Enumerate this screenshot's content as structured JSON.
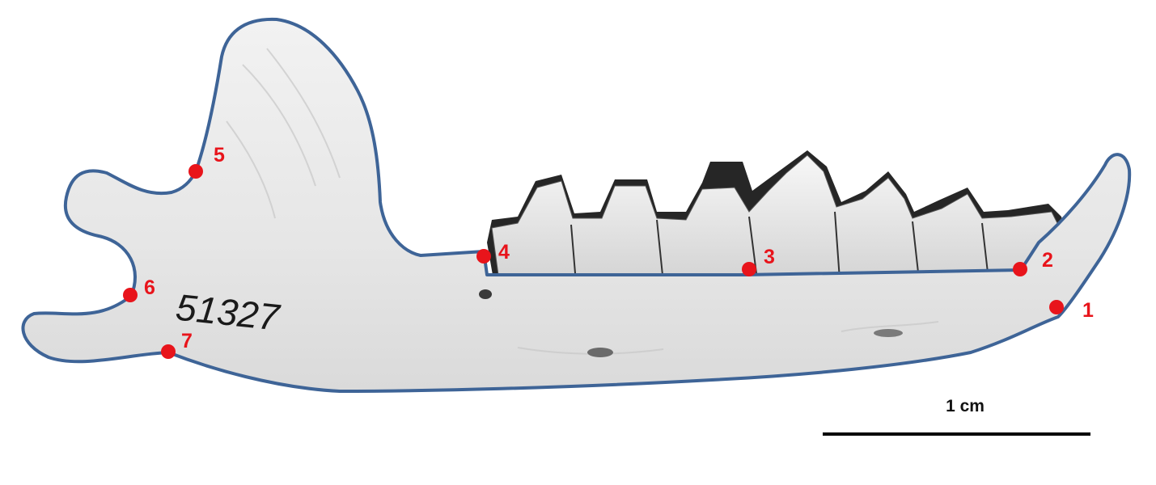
{
  "image": {
    "subject": "mandible-photo",
    "specimen_number": "51327",
    "colors": {
      "outline": "#3e6497",
      "landmark": "#e8141b",
      "bone": "#ebebeb",
      "background": "#ffffff"
    }
  },
  "landmarks": [
    {
      "id": "landmark-1",
      "label": "1"
    },
    {
      "id": "landmark-2",
      "label": "2"
    },
    {
      "id": "landmark-3",
      "label": "3"
    },
    {
      "id": "landmark-4",
      "label": "4"
    },
    {
      "id": "landmark-5",
      "label": "5"
    },
    {
      "id": "landmark-6",
      "label": "6"
    },
    {
      "id": "landmark-7",
      "label": "7"
    }
  ],
  "scale_bar": {
    "label": "1 cm"
  }
}
